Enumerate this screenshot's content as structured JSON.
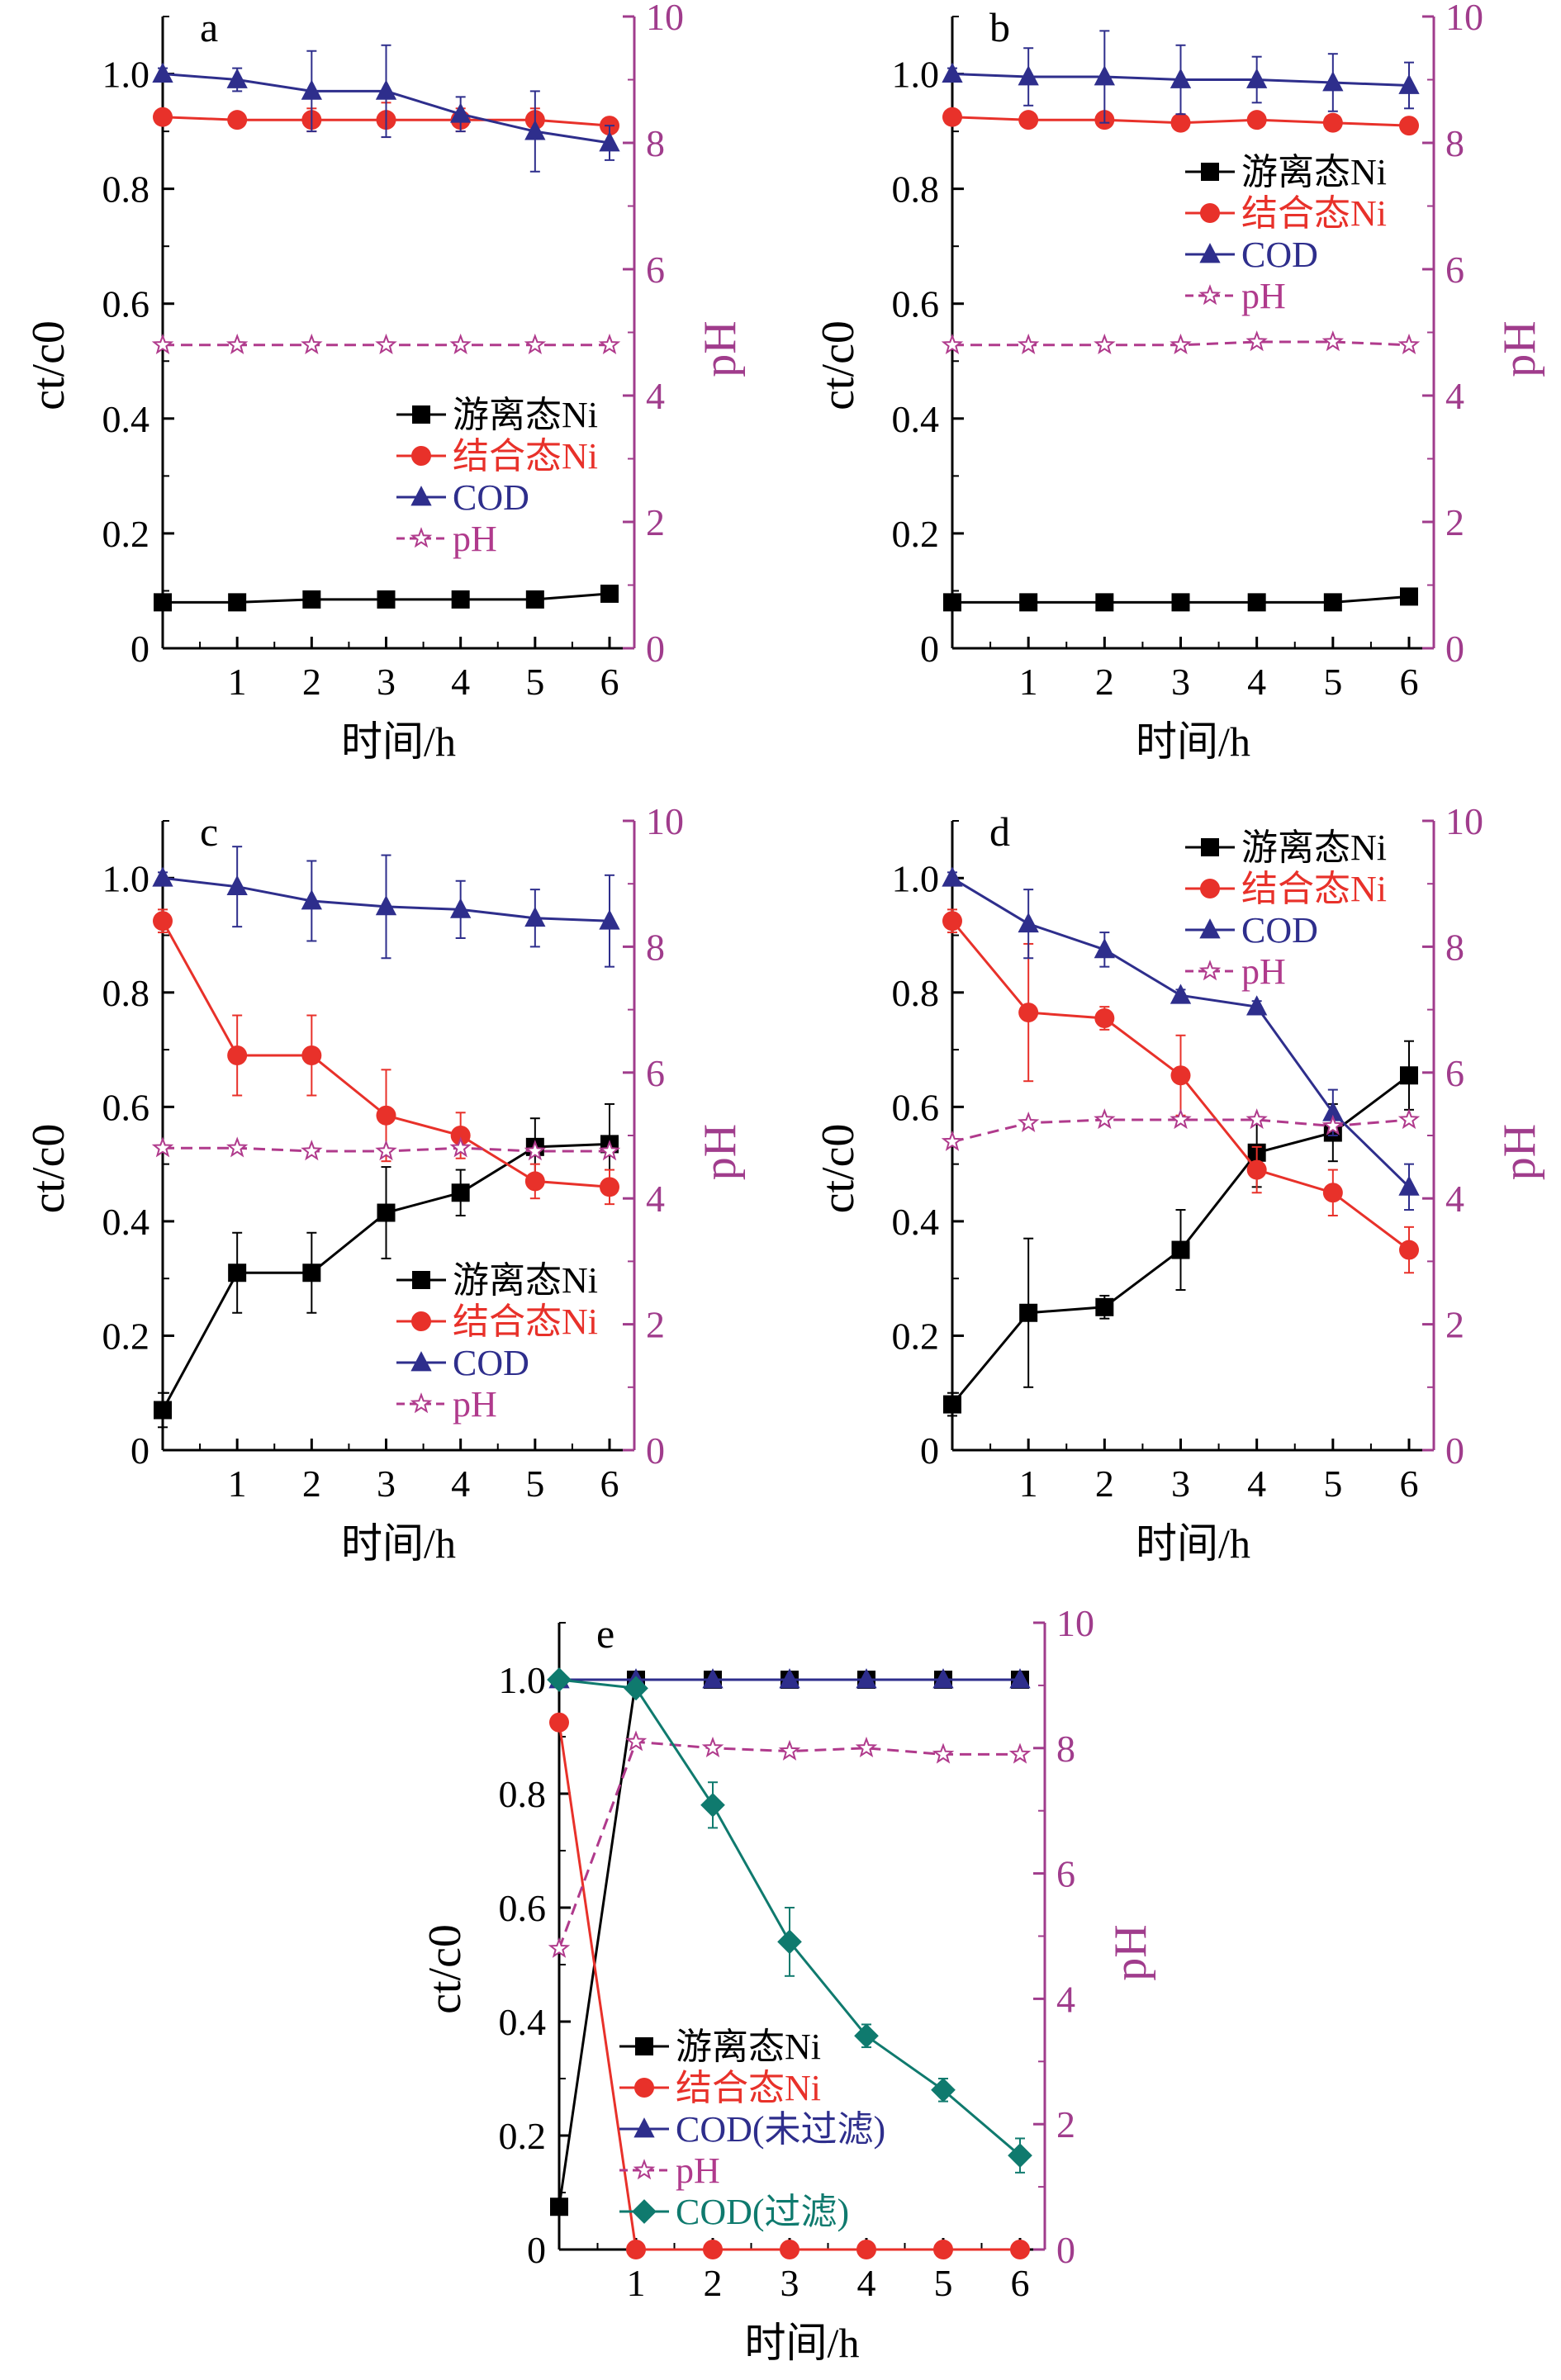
{
  "colors": {
    "free_ni": "#000000",
    "bound_ni": "#e8312a",
    "cod": "#2e2e8c",
    "ph": "#b03a8c",
    "cod_filtered": "#0f7a6e",
    "ph_axis": "#a03c8c"
  },
  "chart_data": [
    {
      "id": "a",
      "type": "line",
      "panel_label": "a",
      "xlabel": "时间/h",
      "ylabel": "ct/c0",
      "y2label": "pH",
      "x": [
        0,
        1,
        2,
        3,
        4,
        5,
        6
      ],
      "xticks": [
        "1",
        "2",
        "3",
        "4",
        "5",
        "6"
      ],
      "ylim": [
        0,
        1.1
      ],
      "yticks": [
        "0",
        "0.2",
        "0.4",
        "0.6",
        "0.8",
        "1.0"
      ],
      "y2lim": [
        0,
        10
      ],
      "y2ticks": [
        "0",
        "2",
        "4",
        "6",
        "8",
        "10"
      ],
      "legend_position": "lower-right",
      "series": [
        {
          "name": "游离态Ni",
          "color": "#000000",
          "marker": "square",
          "axis": "left",
          "values": [
            0.08,
            0.08,
            0.085,
            0.085,
            0.085,
            0.085,
            0.095
          ],
          "err": [
            0.01,
            0.01,
            0.01,
            0.01,
            0.01,
            0.01,
            0.01
          ]
        },
        {
          "name": "结合态Ni",
          "color": "#e8312a",
          "marker": "circle",
          "axis": "left",
          "values": [
            0.925,
            0.92,
            0.92,
            0.92,
            0.92,
            0.92,
            0.91
          ],
          "err": [
            0.01,
            0.01,
            0.02,
            0.03,
            0.02,
            0.02,
            0.01
          ]
        },
        {
          "name": "COD",
          "color": "#2e2e8c",
          "marker": "triangle",
          "axis": "left",
          "values": [
            1.0,
            0.99,
            0.97,
            0.97,
            0.93,
            0.9,
            0.88
          ],
          "err": [
            0.01,
            0.02,
            0.07,
            0.08,
            0.03,
            0.07,
            0.03
          ]
        },
        {
          "name": "pH",
          "color": "#b03a8c",
          "marker": "star",
          "axis": "right",
          "dashed": true,
          "values": [
            4.8,
            4.8,
            4.8,
            4.8,
            4.8,
            4.8,
            4.8
          ]
        }
      ]
    },
    {
      "id": "b",
      "type": "line",
      "panel_label": "b",
      "xlabel": "时间/h",
      "ylabel": "ct/c0",
      "y2label": "pH",
      "x": [
        0,
        1,
        2,
        3,
        4,
        5,
        6
      ],
      "xticks": [
        "1",
        "2",
        "3",
        "4",
        "5",
        "6"
      ],
      "ylim": [
        0,
        1.1
      ],
      "yticks": [
        "0",
        "0.2",
        "0.4",
        "0.6",
        "0.8",
        "1.0"
      ],
      "y2lim": [
        0,
        10
      ],
      "y2ticks": [
        "0",
        "2",
        "4",
        "6",
        "8",
        "10"
      ],
      "legend_position": "upper-right",
      "series": [
        {
          "name": "游离态Ni",
          "color": "#000000",
          "marker": "square",
          "axis": "left",
          "values": [
            0.08,
            0.08,
            0.08,
            0.08,
            0.08,
            0.08,
            0.09
          ],
          "err": [
            0.01,
            0.01,
            0.01,
            0.01,
            0.01,
            0.01,
            0.01
          ]
        },
        {
          "name": "结合态Ni",
          "color": "#e8312a",
          "marker": "circle",
          "axis": "left",
          "values": [
            0.925,
            0.92,
            0.92,
            0.915,
            0.92,
            0.915,
            0.91
          ],
          "err": [
            0.01,
            0.01,
            0.01,
            0.01,
            0.01,
            0.01,
            0.01
          ]
        },
        {
          "name": "COD",
          "color": "#2e2e8c",
          "marker": "triangle",
          "axis": "left",
          "values": [
            1.0,
            0.995,
            0.995,
            0.99,
            0.99,
            0.985,
            0.98
          ],
          "err": [
            0.01,
            0.05,
            0.08,
            0.06,
            0.04,
            0.05,
            0.04
          ]
        },
        {
          "name": "pH",
          "color": "#b03a8c",
          "marker": "star",
          "axis": "right",
          "dashed": true,
          "values": [
            4.8,
            4.8,
            4.8,
            4.8,
            4.85,
            4.85,
            4.8
          ]
        }
      ]
    },
    {
      "id": "c",
      "type": "line",
      "panel_label": "c",
      "xlabel": "时间/h",
      "ylabel": "ct/c0",
      "y2label": "pH",
      "x": [
        0,
        1,
        2,
        3,
        4,
        5,
        6
      ],
      "xticks": [
        "1",
        "2",
        "3",
        "4",
        "5",
        "6"
      ],
      "ylim": [
        0,
        1.1
      ],
      "yticks": [
        "0",
        "0.2",
        "0.4",
        "0.6",
        "0.8",
        "1.0"
      ],
      "y2lim": [
        0,
        10
      ],
      "y2ticks": [
        "0",
        "2",
        "4",
        "6",
        "8",
        "10"
      ],
      "legend_position": "lower-right",
      "series": [
        {
          "name": "游离态Ni",
          "color": "#000000",
          "marker": "square",
          "axis": "left",
          "values": [
            0.07,
            0.31,
            0.31,
            0.415,
            0.45,
            0.53,
            0.535
          ],
          "err": [
            0.03,
            0.07,
            0.07,
            0.08,
            0.04,
            0.05,
            0.07
          ]
        },
        {
          "name": "结合态Ni",
          "color": "#e8312a",
          "marker": "circle",
          "axis": "left",
          "values": [
            0.925,
            0.69,
            0.69,
            0.585,
            0.55,
            0.47,
            0.46
          ],
          "err": [
            0.02,
            0.07,
            0.07,
            0.08,
            0.04,
            0.03,
            0.03
          ]
        },
        {
          "name": "COD",
          "color": "#2e2e8c",
          "marker": "triangle",
          "axis": "left",
          "values": [
            1.0,
            0.985,
            0.96,
            0.95,
            0.945,
            0.93,
            0.925
          ],
          "err": [
            0.01,
            0.07,
            0.07,
            0.09,
            0.05,
            0.05,
            0.08
          ]
        },
        {
          "name": "pH",
          "color": "#b03a8c",
          "marker": "star",
          "axis": "right",
          "dashed": true,
          "values": [
            4.8,
            4.8,
            4.75,
            4.75,
            4.8,
            4.75,
            4.75
          ]
        }
      ]
    },
    {
      "id": "d",
      "type": "line",
      "panel_label": "d",
      "xlabel": "时间/h",
      "ylabel": "ct/c0",
      "y2label": "pH",
      "x": [
        0,
        1,
        2,
        3,
        4,
        5,
        6
      ],
      "xticks": [
        "1",
        "2",
        "3",
        "4",
        "5",
        "6"
      ],
      "ylim": [
        0,
        1.1
      ],
      "yticks": [
        "0",
        "0.2",
        "0.4",
        "0.6",
        "0.8",
        "1.0"
      ],
      "y2lim": [
        0,
        10
      ],
      "y2ticks": [
        "0",
        "2",
        "4",
        "6",
        "8",
        "10"
      ],
      "legend_position": "upper-right",
      "series": [
        {
          "name": "游离态Ni",
          "color": "#000000",
          "marker": "square",
          "axis": "left",
          "values": [
            0.08,
            0.24,
            0.25,
            0.35,
            0.52,
            0.555,
            0.655
          ],
          "err": [
            0.02,
            0.13,
            0.02,
            0.07,
            0.06,
            0.05,
            0.06
          ]
        },
        {
          "name": "结合态Ni",
          "color": "#e8312a",
          "marker": "circle",
          "axis": "left",
          "values": [
            0.925,
            0.765,
            0.755,
            0.655,
            0.49,
            0.45,
            0.35
          ],
          "err": [
            0.02,
            0.12,
            0.02,
            0.07,
            0.04,
            0.04,
            0.04
          ]
        },
        {
          "name": "COD",
          "color": "#2e2e8c",
          "marker": "triangle",
          "axis": "left",
          "values": [
            1.0,
            0.92,
            0.875,
            0.795,
            0.775,
            0.59,
            0.46
          ],
          "err": [
            0.01,
            0.06,
            0.03,
            0.01,
            0.01,
            0.04,
            0.04
          ]
        },
        {
          "name": "pH",
          "color": "#b03a8c",
          "marker": "star",
          "axis": "right",
          "dashed": true,
          "values": [
            4.9,
            5.2,
            5.25,
            5.25,
            5.25,
            5.15,
            5.25
          ]
        }
      ]
    },
    {
      "id": "e",
      "type": "line",
      "panel_label": "e",
      "xlabel": "时间/h",
      "ylabel": "ct/c0",
      "y2label": "pH",
      "x": [
        0,
        1,
        2,
        3,
        4,
        5,
        6
      ],
      "xticks": [
        "1",
        "2",
        "3",
        "4",
        "5",
        "6"
      ],
      "ylim": [
        0,
        1.1
      ],
      "yticks": [
        "0",
        "0.2",
        "0.4",
        "0.6",
        "0.8",
        "1.0"
      ],
      "y2lim": [
        0,
        10
      ],
      "y2ticks": [
        "0",
        "2",
        "4",
        "6",
        "8",
        "10"
      ],
      "legend_position": "lower-left",
      "series": [
        {
          "name": "游离态Ni",
          "color": "#000000",
          "marker": "square",
          "axis": "left",
          "values": [
            0.075,
            1.0,
            1.0,
            1.0,
            1.0,
            1.0,
            1.0
          ]
        },
        {
          "name": "结合态Ni",
          "color": "#e8312a",
          "marker": "circle",
          "axis": "left",
          "values": [
            0.925,
            0.0,
            0.0,
            0.0,
            0.0,
            0.0,
            0.0
          ]
        },
        {
          "name": "COD(未过滤)",
          "color": "#2e2e8c",
          "marker": "triangle",
          "axis": "left",
          "values": [
            1.0,
            1.0,
            1.0,
            1.0,
            1.0,
            1.0,
            1.0
          ]
        },
        {
          "name": "pH",
          "color": "#b03a8c",
          "marker": "star",
          "axis": "right",
          "dashed": true,
          "values": [
            4.8,
            8.1,
            8.0,
            7.95,
            8.0,
            7.9,
            7.9
          ]
        },
        {
          "name": "COD(过滤)",
          "color": "#0f7a6e",
          "marker": "diamond",
          "axis": "left",
          "values": [
            1.0,
            0.985,
            0.78,
            0.54,
            0.375,
            0.28,
            0.165
          ],
          "err": [
            0.01,
            0.01,
            0.04,
            0.06,
            0.02,
            0.02,
            0.03
          ]
        }
      ]
    }
  ]
}
